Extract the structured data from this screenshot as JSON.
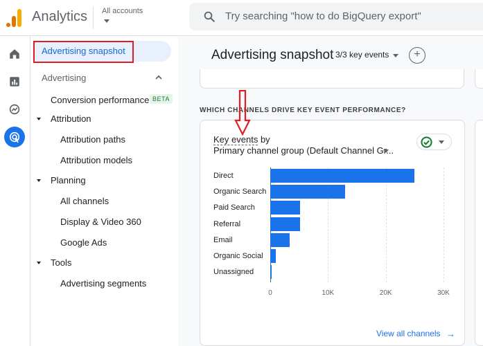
{
  "header": {
    "app_title": "Analytics",
    "account_label": "All accounts",
    "search_placeholder": "Try searching \"how to do BigQuery export\""
  },
  "rail": {
    "icons": [
      "home-icon",
      "reports-icon",
      "explore-icon",
      "advertising-icon"
    ],
    "active": "advertising-icon"
  },
  "sidebar": {
    "snapshot": "Advertising snapshot",
    "section": "Advertising",
    "conversion": "Conversion performance",
    "beta": "BETA",
    "attribution": "Attribution",
    "attribution_paths": "Attribution paths",
    "attribution_models": "Attribution models",
    "planning": "Planning",
    "all_channels": "All channels",
    "display_video": "Display & Video 360",
    "google_ads": "Google Ads",
    "tools": "Tools",
    "ad_segments": "Advertising segments"
  },
  "main": {
    "title": "Advertising snapshot",
    "events_selector": "3/3 key events",
    "section_heading": "WHICH CHANNELS DRIVE KEY EVENT PERFORMANCE?",
    "card": {
      "metric": "Key events",
      "metric_suffix": "by",
      "dimension": "Primary channel group (Default Channel Gr...",
      "view_all": "View all channels",
      "view_arrow": "→"
    }
  },
  "colors": {
    "accent": "#1a73e8",
    "highlight": "#e01c24",
    "status_ok": "#188038"
  },
  "chart_data": {
    "type": "bar",
    "orientation": "horizontal",
    "categories": [
      "Direct",
      "Organic Search",
      "Paid Search",
      "Referral",
      "Email",
      "Organic Social",
      "Unassigned"
    ],
    "values": [
      25000,
      13000,
      5100,
      5100,
      3300,
      1000,
      200
    ],
    "xlim": [
      0,
      30000
    ],
    "ticks": [
      "0",
      "10K",
      "20K",
      "30K"
    ],
    "grid": true
  }
}
